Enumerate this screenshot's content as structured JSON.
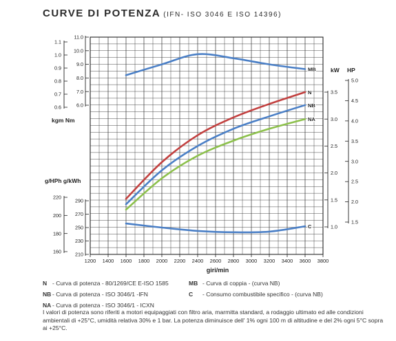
{
  "header": {
    "title": "CURVE DI POTENZA",
    "subtitle": "(IFN- ISO 3046 E ISO 14396)"
  },
  "chart_data": {
    "type": "line",
    "x": [
      1600,
      2000,
      2400,
      2800,
      3200,
      3600
    ],
    "xlabel": "giri/min",
    "xlim": [
      1200,
      3800
    ],
    "x_ticks": [
      1200,
      1400,
      1600,
      1800,
      2000,
      2200,
      2400,
      2600,
      2800,
      3000,
      3200,
      3400,
      3600,
      3800
    ],
    "grid": true,
    "axes": {
      "torque_nm": {
        "ticks": [
          "6.0",
          "7.0",
          "8.0",
          "9.0",
          "10.0",
          "11.0"
        ],
        "range": [
          6.0,
          11.0
        ]
      },
      "torque_kgm": {
        "ticks": [
          "0.6",
          "0.7",
          "0.8",
          "0.9",
          "1.0",
          "1.1"
        ],
        "range": [
          0.6,
          1.1
        ]
      },
      "torque_label": "kgm   Nm",
      "kw": {
        "ticks": [
          "1.0",
          "1.5",
          "2.0",
          "2.5",
          "3.0",
          "3.5"
        ],
        "range": [
          1.0,
          3.5
        ]
      },
      "hp": {
        "ticks": [
          "1.5",
          "2.0",
          "2.5",
          "3.0",
          "3.5",
          "4.0",
          "4.5",
          "5.0"
        ],
        "range": [
          1.5,
          5.0
        ]
      },
      "power_label_kw": "kW",
      "power_label_hp": "HP",
      "g_kwh": {
        "ticks": [
          "210",
          "230",
          "250",
          "270",
          "290"
        ],
        "range": [
          210,
          290
        ]
      },
      "g_hph": {
        "ticks": [
          "160",
          "180",
          "200",
          "220"
        ],
        "range": [
          160,
          220
        ]
      },
      "consumption_label": "g/HPh g/kWh"
    },
    "series": [
      {
        "name": "MB",
        "axis": "torque_nm",
        "color": "#4a7fc6",
        "values": [
          8.2,
          9.0,
          9.75,
          9.45,
          9.0,
          8.65
        ]
      },
      {
        "name": "N",
        "axis": "kw",
        "color": "#c2403f",
        "values": [
          1.52,
          2.2,
          2.7,
          3.03,
          3.28,
          3.5
        ]
      },
      {
        "name": "NB",
        "axis": "kw",
        "color": "#4a7fc6",
        "values": [
          1.42,
          2.05,
          2.5,
          2.82,
          3.05,
          3.26
        ]
      },
      {
        "name": "NA",
        "axis": "kw",
        "color": "#8cc04b",
        "values": [
          1.32,
          1.9,
          2.32,
          2.6,
          2.82,
          3.0
        ]
      },
      {
        "name": "C",
        "axis": "g_kwh",
        "color": "#4a7fc6",
        "values": [
          256,
          250,
          245,
          243,
          244,
          252
        ]
      }
    ]
  },
  "legend": {
    "n": {
      "key": "N",
      "text": "- Curva di potenza - 80/1269/CE E-ISO 1585"
    },
    "nb": {
      "key": "NB",
      "text": "- Curva di potenza - ISO 3046/1 -IFN"
    },
    "na": {
      "key": "NA",
      "text": "- Curva di potenza - ISO 3046/1 - ICXN"
    },
    "mb": {
      "key": "MB",
      "text": "- Curva di coppia - (curva NB)"
    },
    "c": {
      "key": "C",
      "text": "- Consumo combustibile specifico - (curva NB)"
    }
  },
  "note": "I valori di potenza sono riferiti a motori equipaggiati con filtro aria, marmitta standard, a rodaggio ultimato ed alle condizioni ambientali di +25°C, umidità relativa 30% e 1 bar. La potenza diminuisce dell' 1% ogni 100 m di altitudine e del 2% ogni 5°C sopra ai +25°C."
}
